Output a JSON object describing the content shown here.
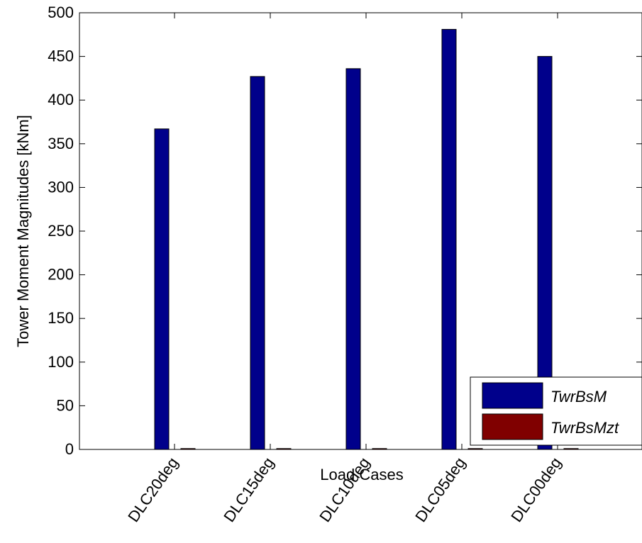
{
  "chart_data": {
    "type": "bar",
    "title": "",
    "xlabel": "Load Cases",
    "ylabel": "Tower Moment Magnitudes [kNm]",
    "categories": [
      "DLC20deg",
      "DLC15deg",
      "DLC10deg",
      "DLC05deg",
      "DLC00deg"
    ],
    "ylim": [
      0,
      500
    ],
    "yticks": [
      0,
      50,
      100,
      150,
      200,
      250,
      300,
      350,
      400,
      450,
      500
    ],
    "grid": false,
    "legend_position": "bottom-right",
    "series": [
      {
        "name": "TwrBsM",
        "values": [
          367,
          427,
          436,
          481,
          450
        ],
        "color": "#00008b"
      },
      {
        "name": "TwrBsMzt",
        "values": [
          1,
          1,
          1,
          1,
          1
        ],
        "color": "#800000"
      }
    ]
  }
}
